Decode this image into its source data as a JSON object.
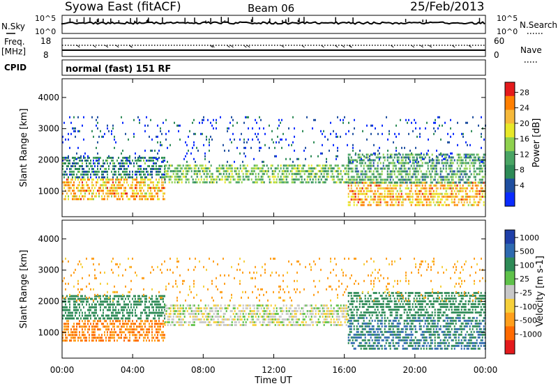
{
  "header": {
    "station": "Syowa East (fitACF)",
    "beam": "Beam 06",
    "date": "25/Feb/2013"
  },
  "status_panels": {
    "nsky_label": "N.Sky",
    "nsearch_label": "N.Search",
    "nsky_ticks": [
      "10^5",
      "10^0"
    ],
    "nsearch_ticks": [
      "10^5",
      "10^0"
    ],
    "freq_label": "Freq.",
    "freq_unit": "[MHz]",
    "freq_ticks": [
      "18",
      "8"
    ],
    "nave_label": "Nave",
    "nave_ticks": [
      "60",
      "0"
    ],
    "cpid_label": "CPID",
    "cpid_text": "normal (fast) 151 RF"
  },
  "chart_data": [
    {
      "type": "heatmap",
      "panel": "power",
      "ylabel": "Slant Range [km]",
      "ylim": [
        180,
        4600
      ],
      "yticks": [
        "1000",
        "2000",
        "3000",
        "4000"
      ],
      "xlim": [
        0,
        24
      ],
      "colorbar_label": "Power [dB]",
      "colorbar_ticks": [
        "28",
        "24",
        "20",
        "16",
        "12",
        "8",
        "4"
      ],
      "colorbar_colors": [
        "#e41a1c",
        "#ff7f00",
        "#f6b93b",
        "#e8e829",
        "#8fd14f",
        "#4aa564",
        "#2e8b57",
        "#1f4fa0",
        "#0a2bff"
      ],
      "bands": [
        {
          "t0": 0.0,
          "t1": 5.8,
          "r0": 700,
          "r1": 1400,
          "level": 22
        },
        {
          "t0": 0.0,
          "t1": 5.8,
          "r0": 1400,
          "r1": 2100,
          "level": 10
        },
        {
          "t0": 5.8,
          "t1": 16.2,
          "r0": 1250,
          "r1": 1850,
          "level": 14
        },
        {
          "t0": 16.2,
          "t1": 24.0,
          "r0": 550,
          "r1": 1300,
          "level": 22
        },
        {
          "t0": 16.2,
          "t1": 24.0,
          "r0": 1300,
          "r1": 2200,
          "level": 12
        },
        {
          "t0": 0.0,
          "t1": 24.0,
          "r0": 1900,
          "r1": 3400,
          "level": 6
        }
      ]
    },
    {
      "type": "heatmap",
      "panel": "velocity",
      "ylabel": "Slant Range [km]",
      "ylim": [
        180,
        4600
      ],
      "yticks": [
        "1000",
        "2000",
        "3000",
        "4000"
      ],
      "xlim": [
        0,
        24
      ],
      "xlabel": "Time UT",
      "xticks": [
        "00:00",
        "04:00",
        "08:00",
        "12:00",
        "16:00",
        "20:00",
        "00:00"
      ],
      "colorbar_label": "Velocity [m s-1]",
      "colorbar_ticks": [
        "1000",
        "500",
        "100",
        "25",
        "-25",
        "-100",
        "-500",
        "-1000"
      ],
      "colorbar_colors": [
        "#1f3fa8",
        "#2e6ab0",
        "#2e8b57",
        "#5fc24a",
        "#c8c8c8",
        "#f6d03b",
        "#ff9f1c",
        "#ff6a00",
        "#e41a1c"
      ],
      "bands": [
        {
          "t0": 0.0,
          "t1": 5.8,
          "r0": 700,
          "r1": 1400,
          "level": -300
        },
        {
          "t0": 0.0,
          "t1": 5.8,
          "r0": 1400,
          "r1": 2200,
          "level": 150
        },
        {
          "t0": 5.8,
          "t1": 16.2,
          "r0": 1200,
          "r1": 1900,
          "level": 0
        },
        {
          "t0": 16.2,
          "t1": 24.0,
          "r0": 500,
          "r1": 1500,
          "level": 300
        },
        {
          "t0": 16.2,
          "t1": 24.0,
          "r0": 1500,
          "r1": 2300,
          "level": 120
        },
        {
          "t0": 0.0,
          "t1": 24.0,
          "r0": 2000,
          "r1": 3400,
          "level": -80
        }
      ]
    }
  ]
}
